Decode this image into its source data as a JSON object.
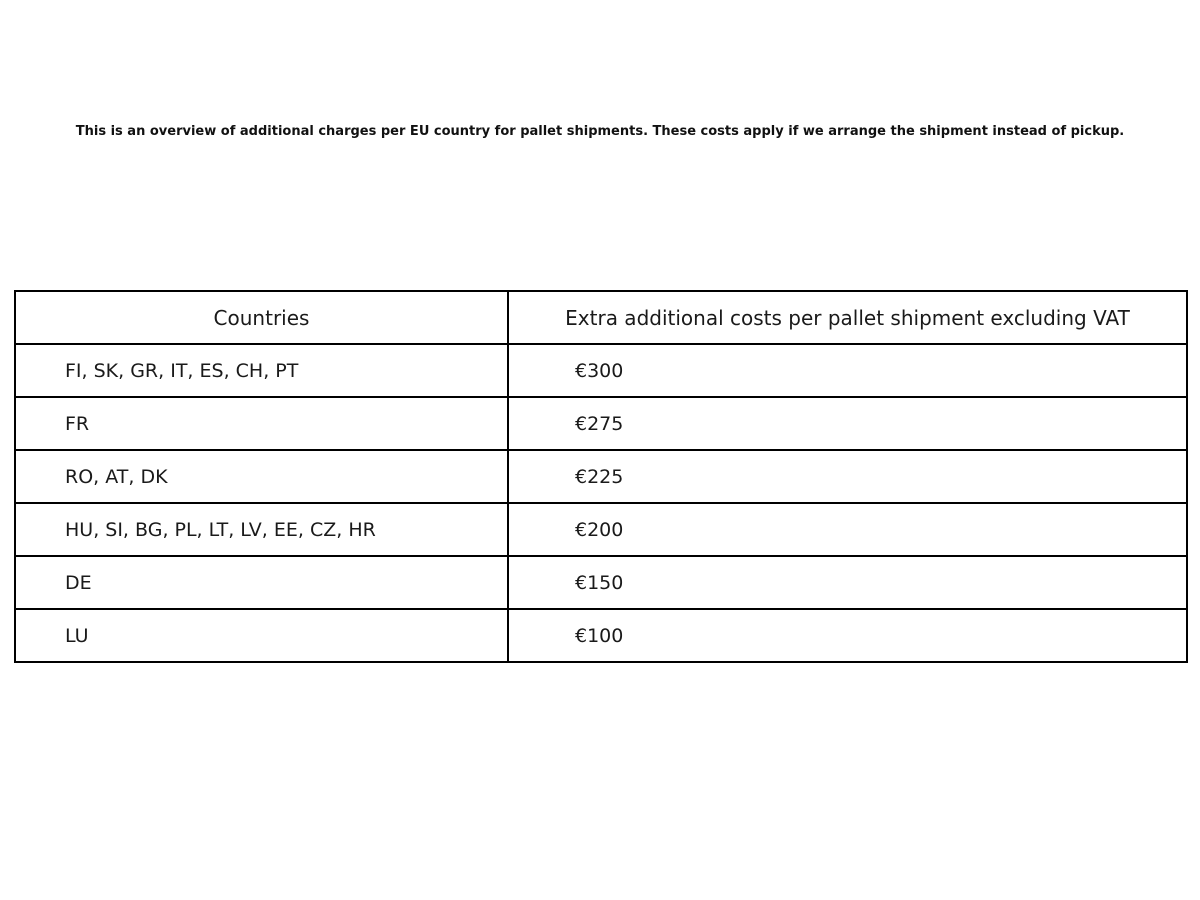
{
  "intro": {
    "text": "This is an overview of additional charges per EU country for pallet shipments. These costs apply if we arrange the shipment instead of pickup."
  },
  "table": {
    "headers": {
      "countries": "Countries",
      "costs": "Extra additional costs per pallet shipment excluding VAT"
    },
    "rows": [
      {
        "countries": "FI, SK, GR, IT, ES, CH, PT",
        "cost": "€300"
      },
      {
        "countries": "FR",
        "cost": "€275"
      },
      {
        "countries": "RO, AT, DK",
        "cost": "€225"
      },
      {
        "countries": "HU, SI, BG, PL, LT, LV, EE, CZ, HR",
        "cost": "€200"
      },
      {
        "countries": "DE",
        "cost": "€150"
      },
      {
        "countries": "LU",
        "cost": "€100"
      }
    ]
  }
}
